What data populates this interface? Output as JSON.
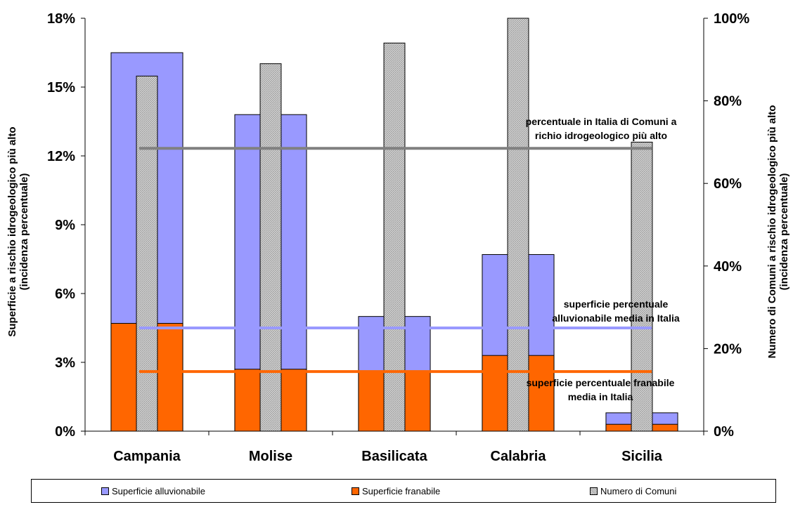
{
  "chart_data": {
    "type": "bar",
    "categories": [
      "Campania",
      "Molise",
      "Basilicata",
      "Calabria",
      "Sicilia"
    ],
    "series": [
      {
        "name": "Superficie alluvionabile",
        "axis": "left",
        "values": [
          16.5,
          13.8,
          5.0,
          7.7,
          0.8
        ],
        "color": "#9999ff"
      },
      {
        "name": "Superficie franabile",
        "axis": "left",
        "values": [
          4.7,
          2.7,
          2.6,
          3.3,
          0.3
        ],
        "color": "#ff6600"
      },
      {
        "name": "Numero di Comuni",
        "axis": "right",
        "values": [
          86,
          89,
          94,
          100,
          70
        ],
        "color": "#c0c0c0"
      }
    ],
    "reference_lines": [
      {
        "axis": "right",
        "value": 68.5,
        "color": "#808080",
        "label": "percentuale in Italia di Comuni a rischio idrogeologico più alto",
        "label_lines": [
          "percentuale in Italia di Comuni a",
          "richio idrogeologico più alto"
        ]
      },
      {
        "axis": "left",
        "value": 4.5,
        "color": "#9999ff",
        "label": "superficie percentuale alluvionabile media in Italia",
        "label_lines": [
          "superficie percentuale",
          "alluvionabile media in Italia"
        ]
      },
      {
        "axis": "left",
        "value": 2.6,
        "color": "#ff6600",
        "label": "superficie percentuale franabile media in Italia",
        "label_lines": [
          "superficie percentuale franabile",
          "media in Italia"
        ]
      }
    ],
    "ylabel": "Superficie a rischio idrogeologico più alto (incidenza percentuale)",
    "ylabel_lines": [
      "Superficie a rischio idrogeologico più alto",
      "(incidenza percentuale)"
    ],
    "ylim": [
      0,
      18
    ],
    "yticks": [
      "0%",
      "3%",
      "6%",
      "9%",
      "12%",
      "15%",
      "18%"
    ],
    "y2label": "Numero di Comuni a rischio idrogeologico più alto (incidenza percentuale)",
    "y2label_lines": [
      "Numero di Comuni a rischio idrogeologico più alto",
      "(incidenza percentuale)"
    ],
    "y2lim": [
      0,
      100
    ],
    "y2ticks": [
      "0%",
      "20%",
      "40%",
      "60%",
      "80%",
      "100%"
    ],
    "grid": false,
    "legend_position": "bottom"
  },
  "legend": {
    "items": [
      {
        "label": "Superficie alluvionabile"
      },
      {
        "label": "Superficie franabile"
      },
      {
        "label": "Numero di Comuni"
      }
    ]
  }
}
